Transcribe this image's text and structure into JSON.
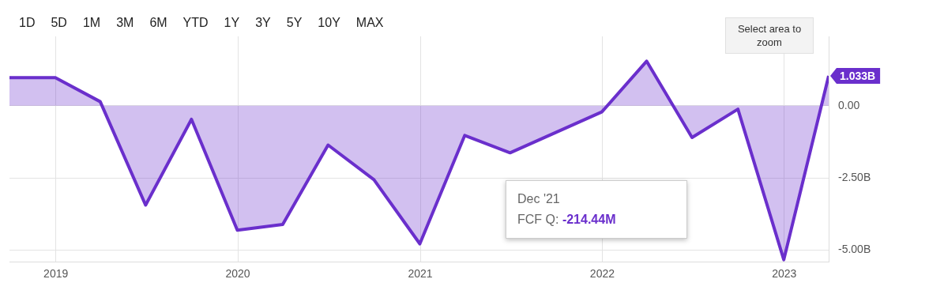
{
  "chart_data": {
    "type": "area",
    "x": [
      "2018-09-30",
      "2018-12-31",
      "2019-03-31",
      "2019-06-30",
      "2019-09-30",
      "2019-12-31",
      "2020-03-31",
      "2020-06-30",
      "2020-09-30",
      "2020-12-31",
      "2021-03-31",
      "2021-06-30",
      "2021-09-30",
      "2021-12-31",
      "2022-03-31",
      "2022-06-30",
      "2022-09-30",
      "2022-12-31",
      "2023-03-31"
    ],
    "series": [
      {
        "color": "#6a2fcc",
        "values": [
          0.97,
          0.97,
          0.14,
          -3.44,
          -0.47,
          -4.31,
          -4.11,
          -1.36,
          -2.56,
          -4.78,
          -1.03,
          -1.63,
          null,
          -0.21444,
          1.54,
          -1.1,
          -0.12,
          -5.33,
          1.033
        ]
      }
    ],
    "xlim": [
      "2018-09-30",
      "2023-03-31"
    ],
    "xticks": [
      {
        "value": "2019-01-01",
        "label": "2019"
      },
      {
        "value": "2020-01-01",
        "label": "2020"
      },
      {
        "value": "2021-01-01",
        "label": "2021"
      },
      {
        "value": "2022-01-01",
        "label": "2022"
      },
      {
        "value": "2023-01-01",
        "label": "2023"
      }
    ],
    "ylim": [
      -5.4,
      2.4
    ],
    "yticks": [
      {
        "value": 0,
        "label": "0.00"
      },
      {
        "value": -2.5,
        "label": "-2.50B"
      },
      {
        "value": -5,
        "label": "-5.00B"
      }
    ],
    "grid": true,
    "legend": false,
    "marker": "none",
    "annotations": [
      "1D",
      "5D",
      "1M",
      "3M",
      "6M",
      "YTD",
      "1Y",
      "3Y",
      "5Y",
      "10Y",
      "MAX",
      "Select area to zoom",
      {
        "text": "1.033B",
        "x": "2023-03-31",
        "y": 1.033
      },
      "Dec '21",
      "FCF Q: -214.44M"
    ]
  }
}
